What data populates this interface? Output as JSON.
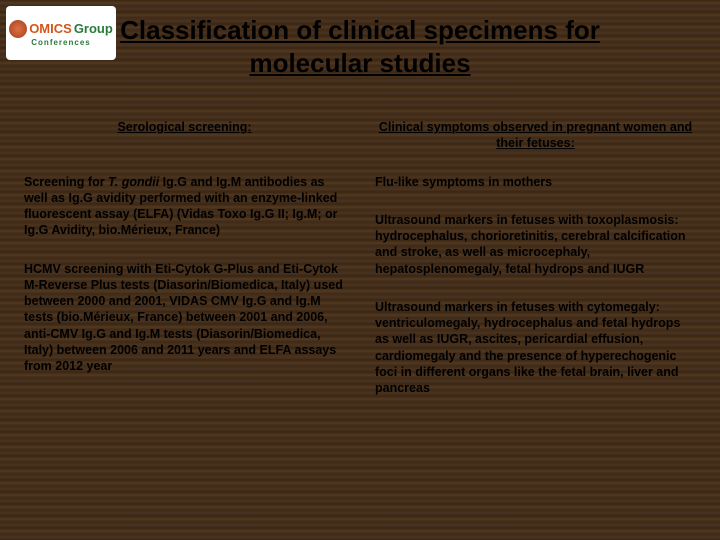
{
  "logo": {
    "omics": "OMICS",
    "group": "Group",
    "conf": "Conferences"
  },
  "title": "Classification of clinical specimens for molecular studies",
  "left": {
    "heading": "Serological screening:",
    "p1_a": "Screening for ",
    "p1_italic": "T. gondii",
    "p1_b": " Ig.G and Ig.M antibodies as well as Ig.G avidity performed with an enzyme-linked fluorescent assay (ELFA) (Vidas Toxo Ig.G II; Ig.M; or Ig.G Avidity, bio.Mérieux, France)",
    "p2": "HCMV screening with Eti-Cytok G-Plus and Eti-Cytok M-Reverse Plus tests (Diasorin/Biomedica, Italy) used between 2000 and 2001, VIDAS CMV Ig.G and Ig.M tests (bio.Mérieux, France) between 2001 and 2006, anti-CMV Ig.G and Ig.M tests (Diasorin/Biomedica, Italy) between 2006 and 2011 years and ELFA assays from 2012 year"
  },
  "right": {
    "heading": "Clinical symptoms observed in pregnant women and their fetuses:",
    "p1": "Flu-like symptoms in mothers",
    "p2": "Ultrasound markers in fetuses with toxoplasmosis:\nhydrocephalus, chorioretinitis, cerebral calcification and stroke, as well as microcephaly, hepatosplenomegaly, fetal hydrops and IUGR",
    "p3": "Ultrasound markers in fetuses with cytomegaly:\nventriculomegaly, hydrocephalus and fetal hydrops as well as IUGR, ascites, pericardial effusion, cardiomegaly and the presence of hyperechogenic foci in different organs like the fetal brain, liver and pancreas"
  }
}
